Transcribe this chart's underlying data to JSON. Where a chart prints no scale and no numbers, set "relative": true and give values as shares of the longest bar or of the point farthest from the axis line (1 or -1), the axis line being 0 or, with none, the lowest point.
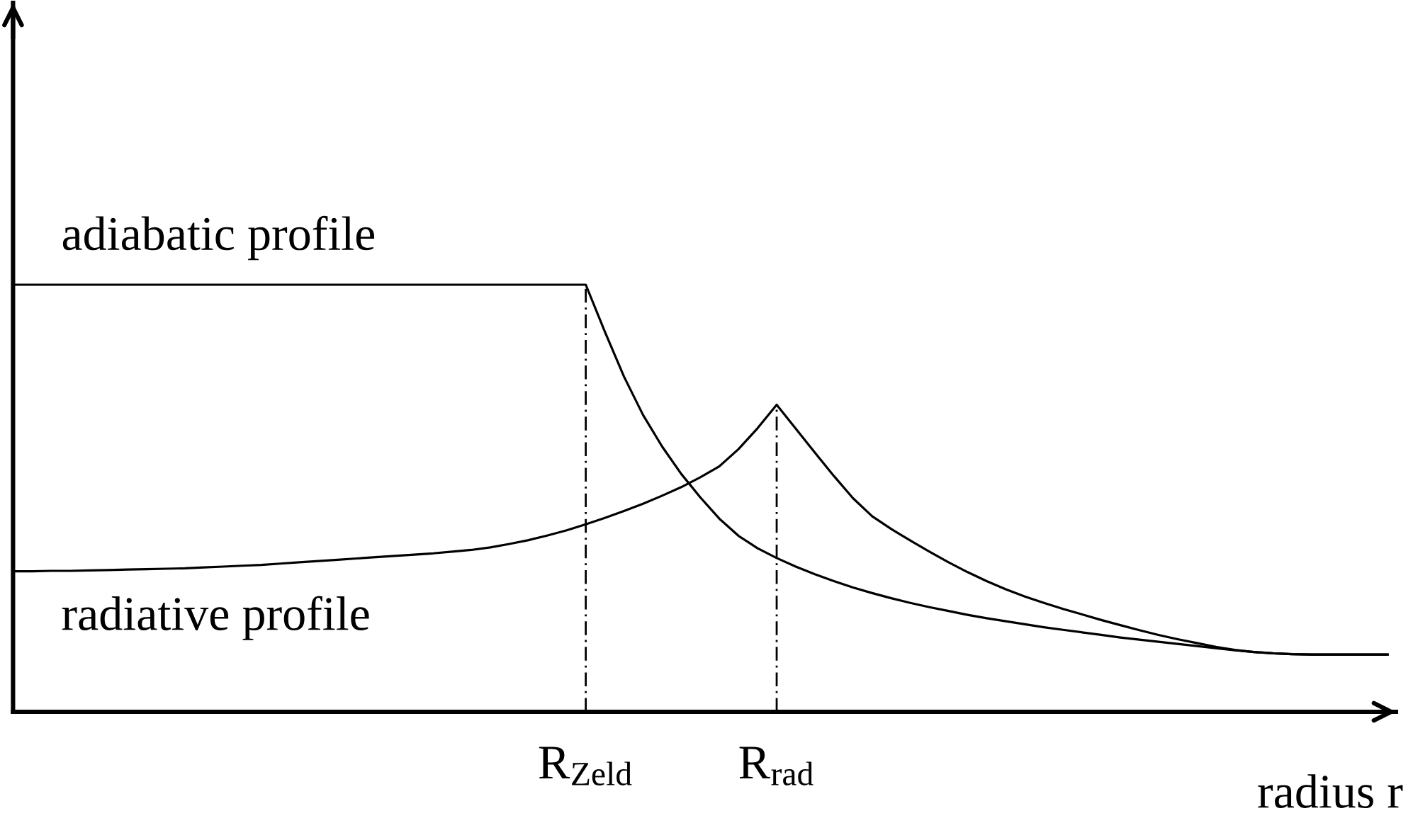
{
  "chart_data": {
    "type": "line",
    "relative": true,
    "categories": [
      null,
      null,
      null,
      null,
      null,
      null,
      null,
      null,
      null,
      null,
      null,
      null,
      null,
      null,
      null,
      null,
      null,
      null,
      null,
      null,
      null,
      null,
      null,
      null,
      null,
      null,
      null,
      null,
      null,
      null,
      "R$_{Zeld}$",
      null,
      null,
      null,
      null,
      null,
      null,
      null,
      null,
      null,
      "R$_{rad}$",
      null,
      null,
      null,
      null,
      null,
      null,
      null,
      null,
      null,
      null,
      null,
      null,
      null,
      null,
      null,
      null,
      null,
      null,
      null,
      null,
      null,
      null,
      null,
      null,
      null,
      null,
      null,
      null,
      null,
      null,
      null,
      null
    ],
    "series": [
      {
        "name": "adiabatic profile",
        "color": "#000000",
        "values": [
          1,
          1,
          1,
          1,
          1,
          1,
          1,
          1,
          1,
          1,
          1,
          1,
          1,
          1,
          1,
          1,
          1,
          1,
          1,
          1,
          1,
          1,
          1,
          1,
          1,
          1,
          1,
          1,
          1,
          1,
          1,
          0.89,
          0.785,
          0.695,
          0.621,
          0.557,
          0.502,
          0.452,
          0.412,
          0.383,
          0.36,
          0.34,
          0.322,
          0.306,
          0.291,
          0.278,
          0.266,
          0.255,
          0.245,
          0.236,
          0.227,
          0.219,
          0.212,
          0.205,
          0.198,
          0.192,
          0.186,
          0.18,
          0.174,
          0.169,
          0.164,
          0.159,
          0.154,
          0.149,
          0.144,
          0.14,
          0.137,
          0.135,
          0.134,
          0.134,
          0.134,
          0.134,
          0.134
        ]
      },
      {
        "name": "radiative profile",
        "color": "#000000",
        "values": [
          0.329,
          0.329,
          0.33,
          0.33,
          0.331,
          0.332,
          0.333,
          0.334,
          0.335,
          0.336,
          0.338,
          0.34,
          0.342,
          0.344,
          0.347,
          0.35,
          0.353,
          0.356,
          0.359,
          0.362,
          0.365,
          0.368,
          0.371,
          0.375,
          0.379,
          0.385,
          0.393,
          0.402,
          0.413,
          0.425,
          0.439,
          0.454,
          0.47,
          0.487,
          0.506,
          0.526,
          0.549,
          0.575,
          0.615,
          0.664,
          0.719,
          0.663,
          0.607,
          0.552,
          0.5,
          0.458,
          0.428,
          0.401,
          0.375,
          0.35,
          0.327,
          0.306,
          0.287,
          0.27,
          0.255,
          0.241,
          0.228,
          0.215,
          0.203,
          0.191,
          0.18,
          0.17,
          0.161,
          0.152,
          0.145,
          0.14,
          0.137,
          0.135,
          0.134,
          0.134,
          0.134,
          0.134,
          0.134
        ]
      }
    ],
    "xlabel": "radius r",
    "line_style": "solid",
    "ref_lines": [
      {
        "axis": "x",
        "value": "R$_{Zeld}$",
        "color": "#000000",
        "line_style": "dashdot"
      },
      {
        "axis": "x",
        "value": "R$_{rad}$",
        "color": "#000000",
        "line_style": "dashdot"
      }
    ]
  }
}
